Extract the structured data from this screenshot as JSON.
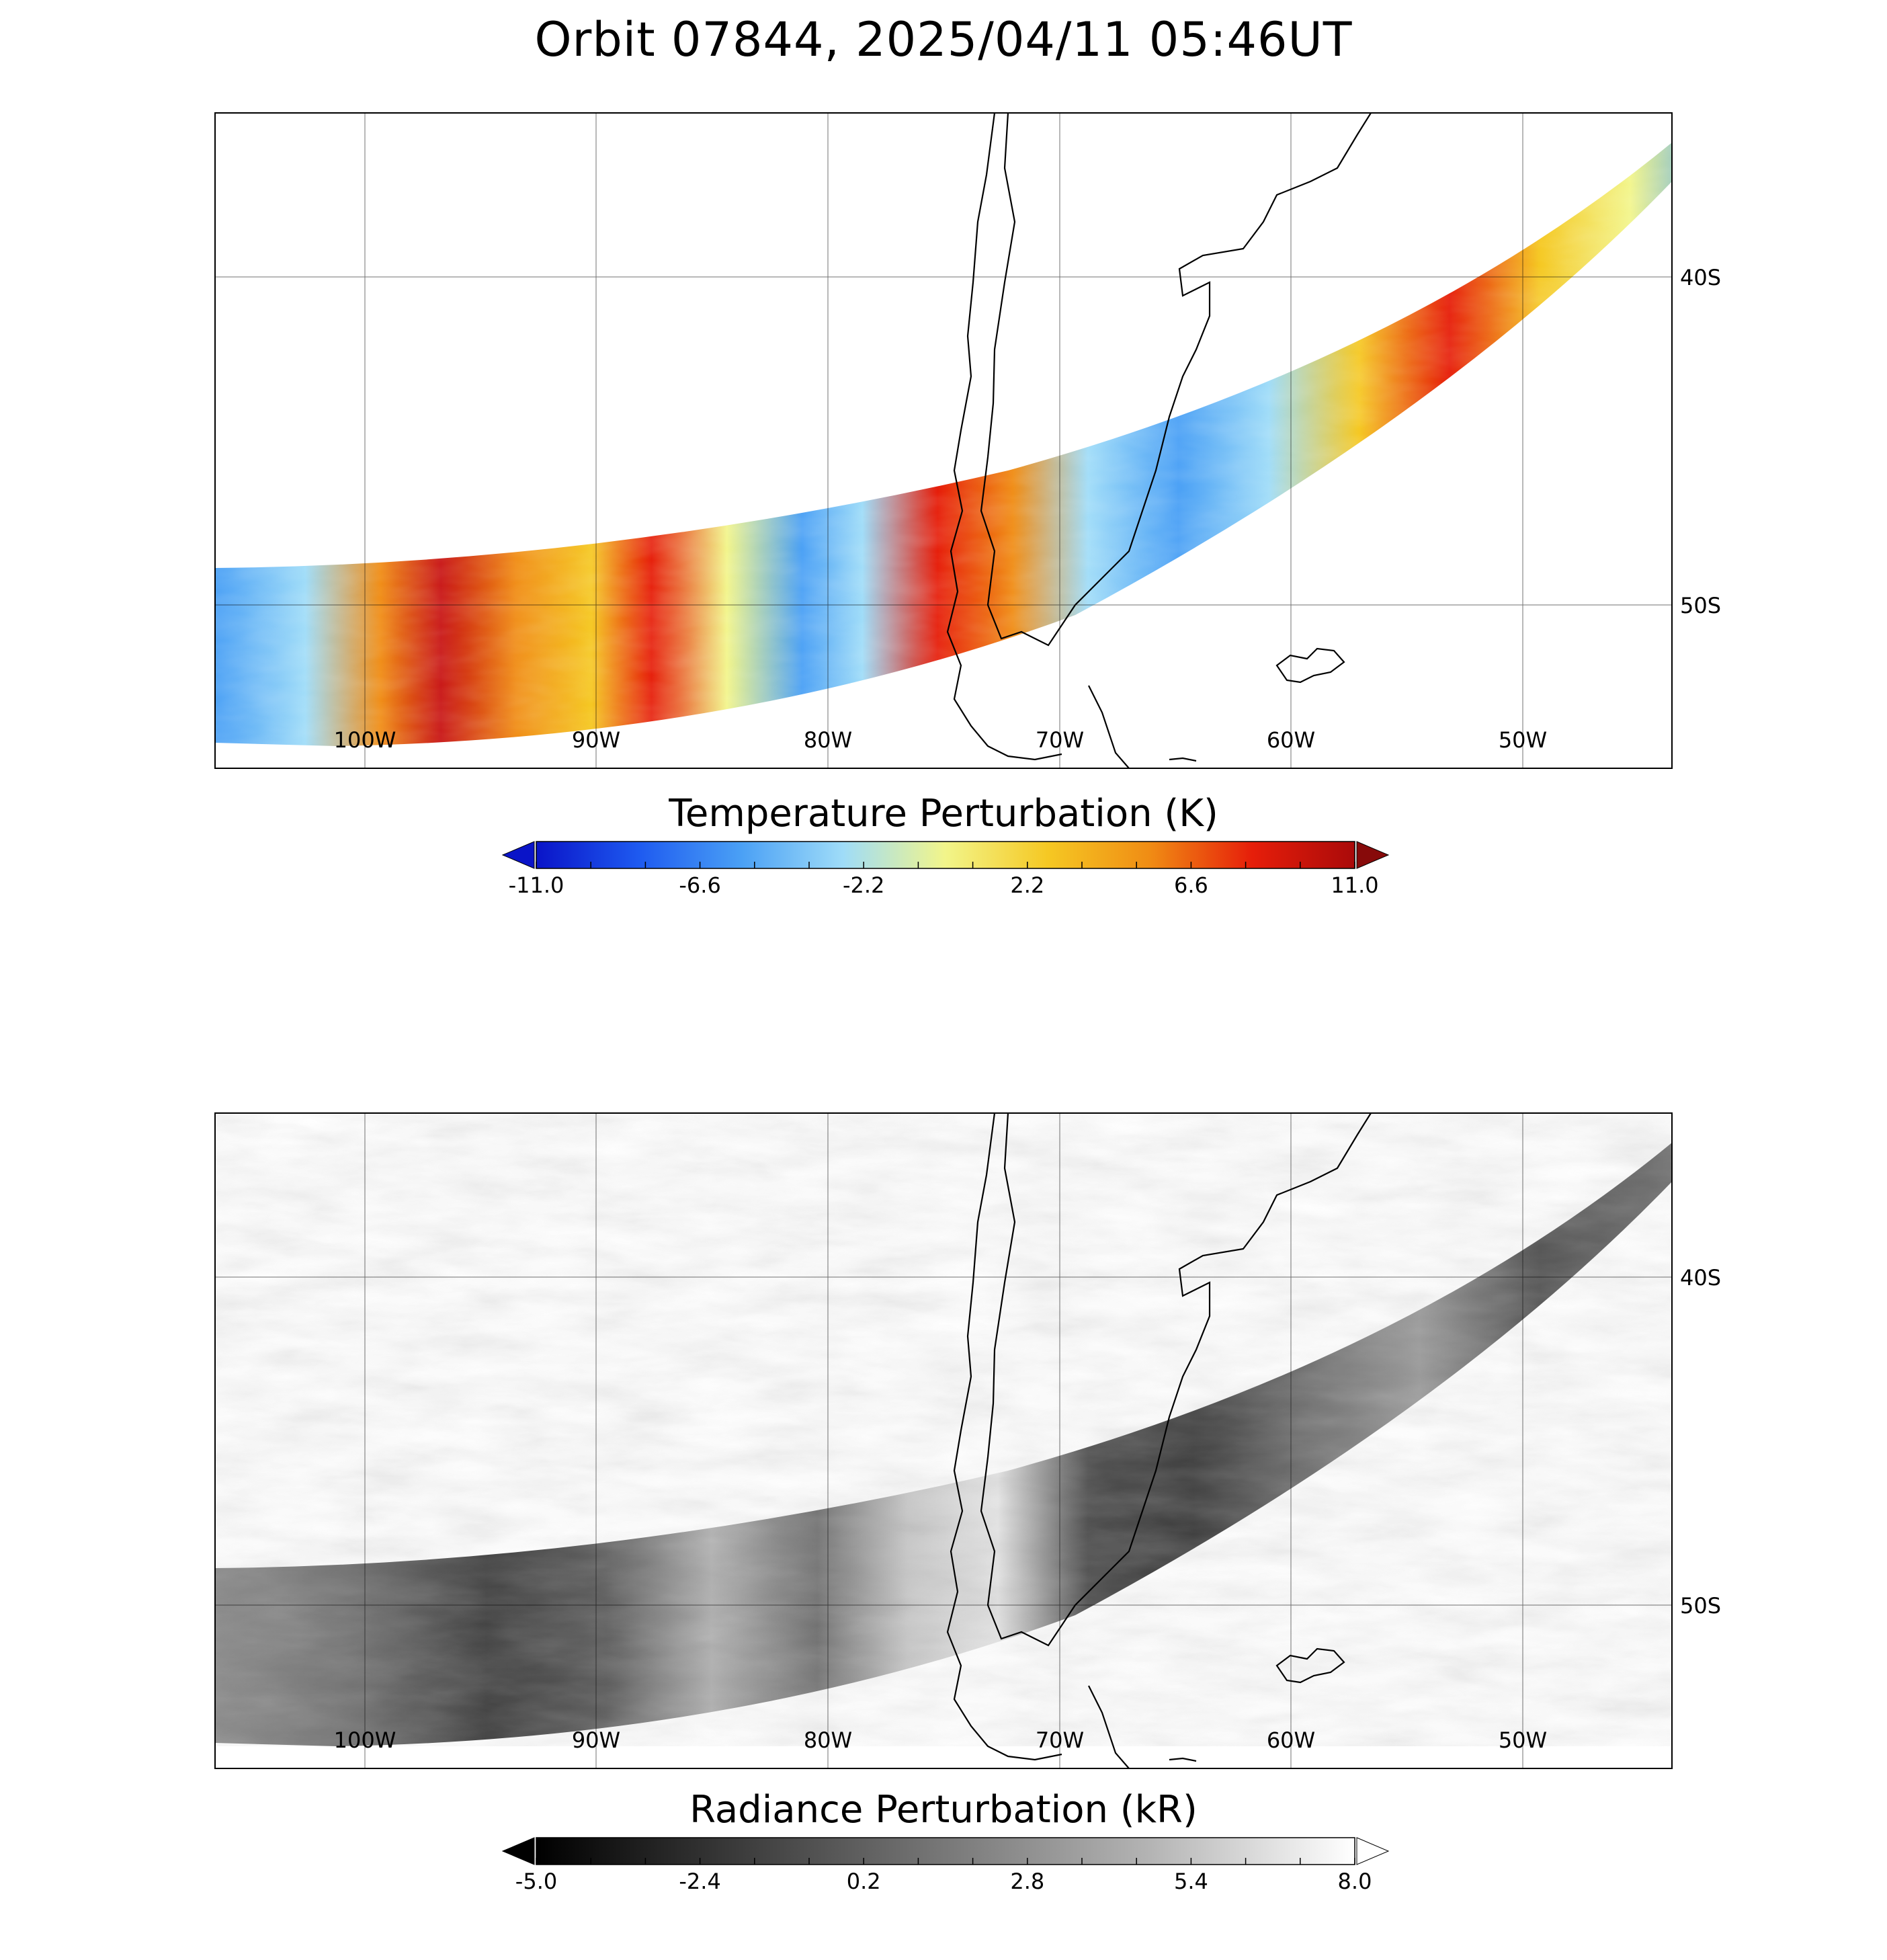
{
  "title": "Orbit 07844, 2025/04/11 05:46UT",
  "longitude_labels": [
    "100W",
    "90W",
    "80W",
    "70W",
    "60W",
    "50W"
  ],
  "latitude_labels": [
    "40S",
    "50S"
  ],
  "panels": [
    {
      "id": "temperature",
      "colorbar": {
        "title": "Temperature Perturbation (K)",
        "tick_labels": [
          "-11.0",
          "-6.6",
          "-2.2",
          "2.2",
          "6.6",
          "11.0"
        ],
        "range": [
          -11.0,
          11.0
        ],
        "extend": "both",
        "colors": [
          "#0a14c8",
          "#1e5af0",
          "#4aa0f5",
          "#9fdcf8",
          "#f2f58a",
          "#f5c823",
          "#f08c14",
          "#e61e0a",
          "#aa0a0a"
        ],
        "min_arrow_color": "#0a14c8",
        "max_arrow_color": "#870a0a"
      },
      "swath_palette": [
        "#9fdcf8",
        "#f2f58a",
        "#f08c14",
        "#4aa0f5",
        "#e61e0a",
        "#f5c823"
      ]
    },
    {
      "id": "radiance",
      "colorbar": {
        "title": "Radiance Perturbation (kR)",
        "tick_labels": [
          "-5.0",
          "-2.4",
          "0.2",
          "2.8",
          "5.4",
          "8.0"
        ],
        "range": [
          -5.0,
          8.0
        ],
        "extend": "both",
        "colors": [
          "#000000",
          "#3c3c3c",
          "#787878",
          "#b4b4b4",
          "#ffffff"
        ],
        "min_arrow_color": "#000000",
        "max_arrow_color": "#ffffff"
      },
      "swath_palette": [
        "#505050",
        "#6e6e6e",
        "#3a3a3a",
        "#8c8c8c",
        "#a8a8a8",
        "#5a5a5a"
      ]
    }
  ]
}
